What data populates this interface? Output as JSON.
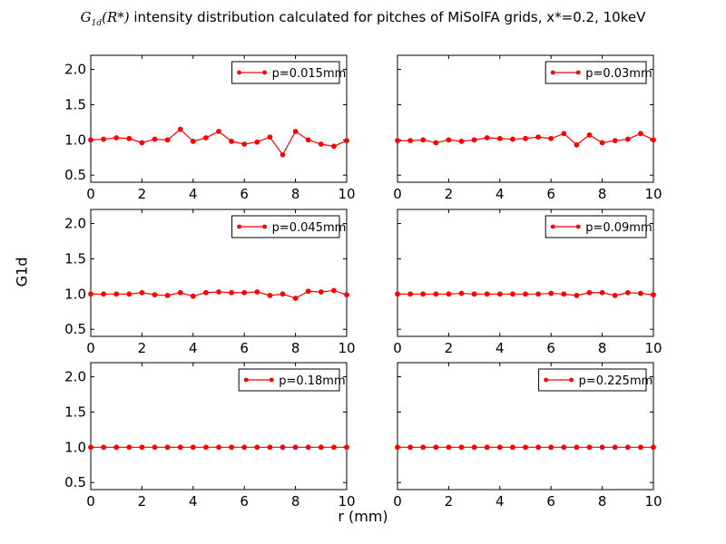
{
  "figure": {
    "title_math_main": "G",
    "title_math_sub": "1d",
    "title_math_arg": "(R*)",
    "title_text": " intensity distribution calculated for pitches of MiSolFA grids, x*=0.2, 10keV",
    "ylabel": "G1d",
    "xlabel": "r (mm)",
    "line_color": "#ff0000"
  },
  "chart_data": [
    {
      "type": "line",
      "series": [
        {
          "name": "p=0.015mm",
          "x": [
            0,
            0.5,
            1,
            1.5,
            2,
            2.5,
            3,
            3.5,
            4,
            4.5,
            5,
            5.5,
            6,
            6.5,
            7,
            7.5,
            8,
            8.5,
            9,
            9.5,
            10
          ],
          "values": [
            1.0,
            1.01,
            1.03,
            1.02,
            0.96,
            1.01,
            1.0,
            1.15,
            0.98,
            1.03,
            1.12,
            0.98,
            0.94,
            0.97,
            1.04,
            0.79,
            1.12,
            1.0,
            0.94,
            0.91,
            0.99
          ]
        }
      ],
      "xlim": [
        0,
        10
      ],
      "ylim": [
        0.4,
        2.2
      ],
      "xticks": [
        "0",
        "2",
        "4",
        "6",
        "8",
        "10"
      ],
      "yticks": [
        "0.5",
        "1.0",
        "1.5",
        "2.0"
      ],
      "legend": "top-right",
      "grid": false
    },
    {
      "type": "line",
      "series": [
        {
          "name": "p=0.03mm",
          "x": [
            0,
            0.5,
            1,
            1.5,
            2,
            2.5,
            3,
            3.5,
            4,
            4.5,
            5,
            5.5,
            6,
            6.5,
            7,
            7.5,
            8,
            8.5,
            9,
            9.5,
            10
          ],
          "values": [
            0.99,
            0.99,
            1.0,
            0.96,
            1.0,
            0.98,
            1.0,
            1.03,
            1.02,
            1.01,
            1.02,
            1.04,
            1.02,
            1.09,
            0.93,
            1.07,
            0.96,
            0.99,
            1.01,
            1.09,
            1.0
          ]
        }
      ],
      "xlim": [
        0,
        10
      ],
      "ylim": [
        0.4,
        2.2
      ],
      "xticks": [
        "0",
        "2",
        "4",
        "6",
        "8",
        "10"
      ],
      "yticks": [],
      "legend": "top-right",
      "grid": false
    },
    {
      "type": "line",
      "series": [
        {
          "name": "p=0.045mm",
          "x": [
            0,
            0.5,
            1,
            1.5,
            2,
            2.5,
            3,
            3.5,
            4,
            4.5,
            5,
            5.5,
            6,
            6.5,
            7,
            7.5,
            8,
            8.5,
            9,
            9.5,
            10
          ],
          "values": [
            1.0,
            1.0,
            1.0,
            1.0,
            1.02,
            0.99,
            0.98,
            1.02,
            0.97,
            1.02,
            1.03,
            1.02,
            1.02,
            1.03,
            0.98,
            1.0,
            0.94,
            1.04,
            1.03,
            1.05,
            0.99
          ]
        }
      ],
      "xlim": [
        0,
        10
      ],
      "ylim": [
        0.4,
        2.2
      ],
      "xticks": [
        "0",
        "2",
        "4",
        "6",
        "8",
        "10"
      ],
      "yticks": [
        "0.5",
        "1.0",
        "1.5",
        "2.0"
      ],
      "legend": "top-right",
      "grid": false
    },
    {
      "type": "line",
      "series": [
        {
          "name": "p=0.09mm",
          "x": [
            0,
            0.5,
            1,
            1.5,
            2,
            2.5,
            3,
            3.5,
            4,
            4.5,
            5,
            5.5,
            6,
            6.5,
            7,
            7.5,
            8,
            8.5,
            9,
            9.5,
            10
          ],
          "values": [
            1.0,
            1.0,
            1.0,
            1.0,
            1.0,
            1.01,
            1.0,
            1.0,
            1.0,
            1.0,
            1.0,
            1.0,
            1.01,
            1.0,
            0.98,
            1.02,
            1.02,
            0.98,
            1.02,
            1.01,
            0.99
          ]
        }
      ],
      "xlim": [
        0,
        10
      ],
      "ylim": [
        0.4,
        2.2
      ],
      "xticks": [
        "0",
        "2",
        "4",
        "6",
        "8",
        "10"
      ],
      "yticks": [],
      "legend": "top-right",
      "grid": false
    },
    {
      "type": "line",
      "series": [
        {
          "name": "p=0.18mm",
          "x": [
            0,
            0.5,
            1,
            1.5,
            2,
            2.5,
            3,
            3.5,
            4,
            4.5,
            5,
            5.5,
            6,
            6.5,
            7,
            7.5,
            8,
            8.5,
            9,
            9.5,
            10
          ],
          "values": [
            1.0,
            1.0,
            1.0,
            1.0,
            1.0,
            1.0,
            1.0,
            1.0,
            1.0,
            1.0,
            1.0,
            1.0,
            1.0,
            1.0,
            1.0,
            1.0,
            1.0,
            1.0,
            1.0,
            1.0,
            1.0
          ]
        }
      ],
      "xlim": [
        0,
        10
      ],
      "ylim": [
        0.4,
        2.2
      ],
      "xticks": [
        "0",
        "2",
        "4",
        "6",
        "8",
        "10"
      ],
      "yticks": [
        "0.5",
        "1.0",
        "1.5",
        "2.0"
      ],
      "legend": "top-right",
      "grid": false
    },
    {
      "type": "line",
      "series": [
        {
          "name": "p=0.225mm",
          "x": [
            0,
            0.5,
            1,
            1.5,
            2,
            2.5,
            3,
            3.5,
            4,
            4.5,
            5,
            5.5,
            6,
            6.5,
            7,
            7.5,
            8,
            8.5,
            9,
            9.5,
            10
          ],
          "values": [
            1.0,
            1.0,
            1.0,
            1.0,
            1.0,
            1.0,
            1.0,
            1.0,
            1.0,
            1.0,
            1.0,
            1.0,
            1.0,
            1.0,
            1.0,
            1.0,
            1.0,
            1.0,
            1.0,
            1.0,
            1.0
          ]
        }
      ],
      "xlim": [
        0,
        10
      ],
      "ylim": [
        0.4,
        2.2
      ],
      "xticks": [
        "0",
        "2",
        "4",
        "6",
        "8",
        "10"
      ],
      "yticks": [],
      "legend": "top-right",
      "grid": false
    }
  ]
}
